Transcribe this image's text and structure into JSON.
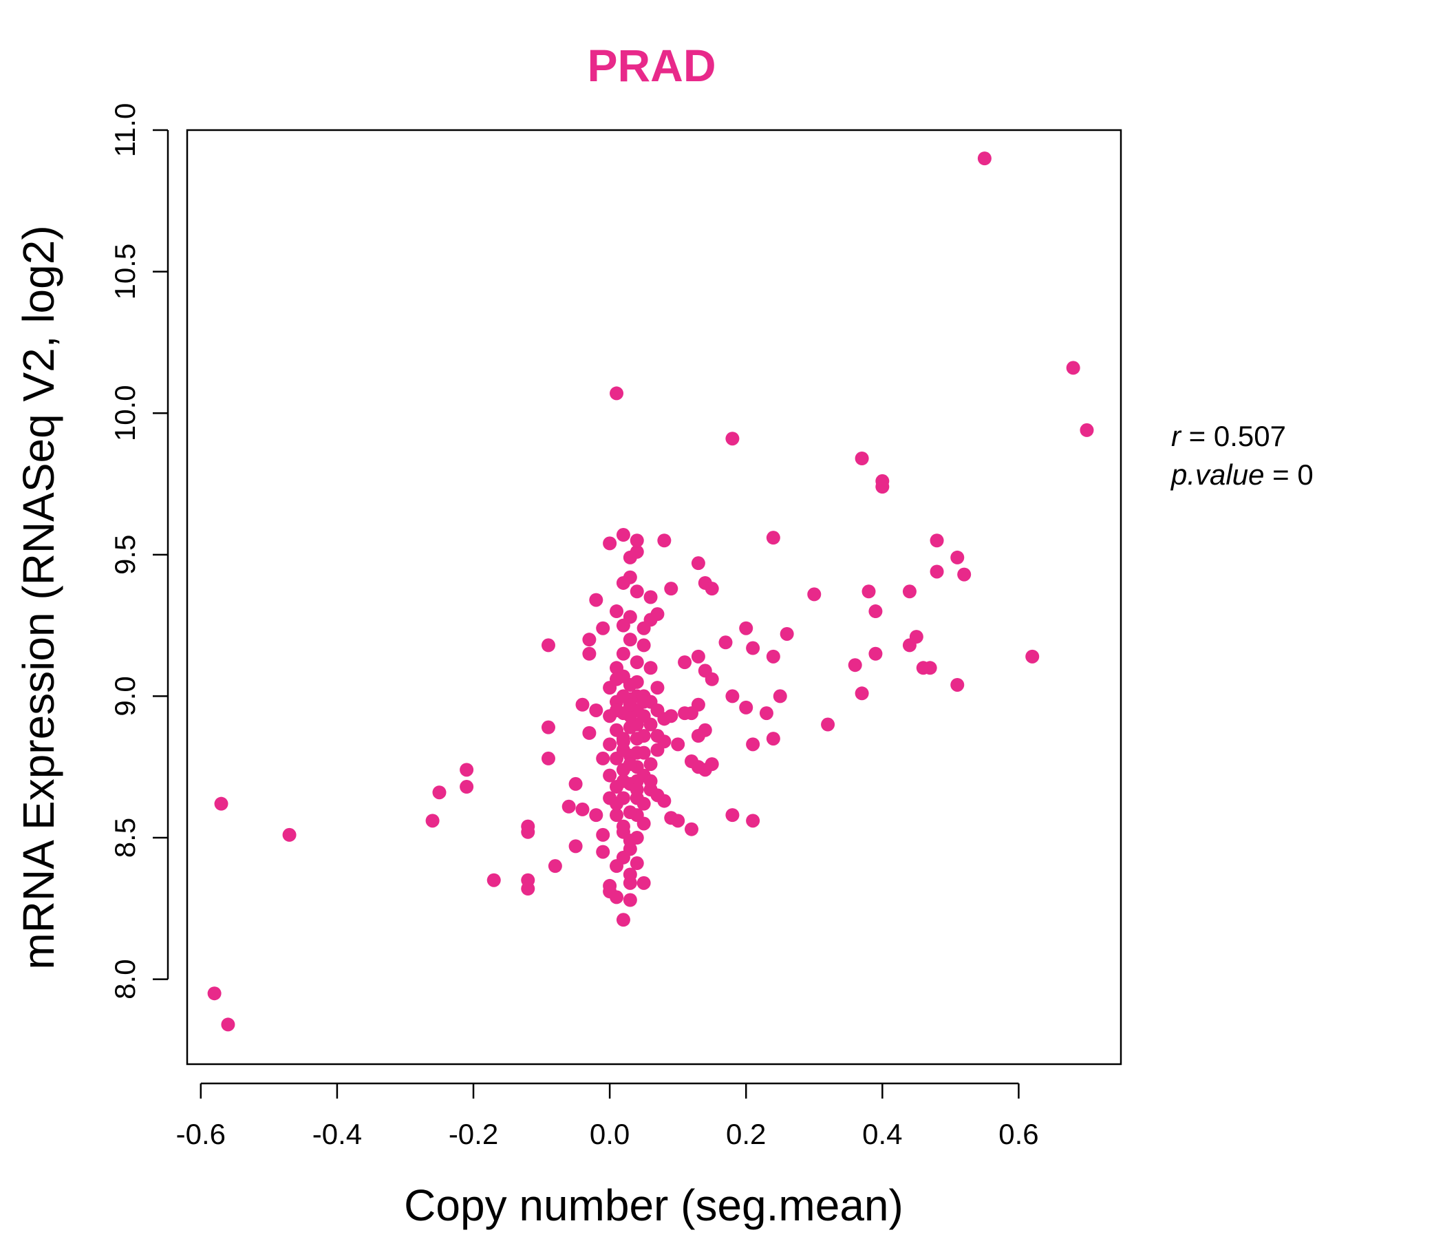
{
  "chart_data": {
    "type": "scatter",
    "title": "PRAD",
    "xlabel": "Copy number (seg.mean)",
    "ylabel": "mRNA Expression (RNASeq V2, log2)",
    "xlim": [
      -0.62,
      0.75
    ],
    "ylim": [
      7.7,
      11.0
    ],
    "x_ticks": [
      -0.6,
      -0.4,
      -0.2,
      0.0,
      0.2,
      0.4,
      0.6
    ],
    "x_tick_labels": [
      "-0.6",
      "-0.4",
      "-0.2",
      "0.0",
      "0.2",
      "0.4",
      "0.6"
    ],
    "y_ticks": [
      8.0,
      8.5,
      9.0,
      9.5,
      10.0,
      10.5,
      11.0
    ],
    "y_tick_labels": [
      "8.0",
      "8.5",
      "9.0",
      "9.5",
      "10.0",
      "10.5",
      "11.0"
    ],
    "grid": false,
    "color": "#E8298A",
    "stats": {
      "r_label": "r",
      "r_value": "0.507",
      "p_label": "p.value",
      "p_value": "0"
    },
    "points": [
      [
        0.55,
        10.9
      ],
      [
        0.68,
        10.16
      ],
      [
        0.7,
        9.94
      ],
      [
        0.01,
        10.07
      ],
      [
        0.18,
        9.91
      ],
      [
        0.37,
        9.84
      ],
      [
        0.4,
        9.76
      ],
      [
        0.4,
        9.74
      ],
      [
        0.24,
        9.56
      ],
      [
        0.48,
        9.55
      ],
      [
        0.51,
        9.49
      ],
      [
        0.52,
        9.43
      ],
      [
        0.48,
        9.44
      ],
      [
        0.38,
        9.37
      ],
      [
        0.44,
        9.37
      ],
      [
        0.3,
        9.36
      ],
      [
        0.39,
        9.3
      ],
      [
        0.26,
        9.22
      ],
      [
        0.45,
        9.21
      ],
      [
        0.44,
        9.18
      ],
      [
        0.39,
        9.15
      ],
      [
        0.62,
        9.14
      ],
      [
        0.36,
        9.11
      ],
      [
        0.46,
        9.1
      ],
      [
        0.47,
        9.1
      ],
      [
        0.51,
        9.04
      ],
      [
        0.37,
        9.01
      ],
      [
        0.32,
        8.9
      ],
      [
        0.2,
        9.24
      ],
      [
        0.21,
        9.17
      ],
      [
        0.17,
        9.19
      ],
      [
        0.24,
        9.14
      ],
      [
        0.18,
        9.0
      ],
      [
        0.2,
        8.96
      ],
      [
        0.23,
        8.94
      ],
      [
        0.25,
        9.0
      ],
      [
        0.21,
        8.83
      ],
      [
        0.24,
        8.85
      ],
      [
        0.18,
        8.58
      ],
      [
        0.21,
        8.56
      ],
      [
        0.13,
        9.47
      ],
      [
        0.14,
        9.4
      ],
      [
        0.15,
        9.38
      ],
      [
        0.13,
        9.14
      ],
      [
        0.14,
        9.09
      ],
      [
        0.15,
        9.06
      ],
      [
        0.11,
        9.12
      ],
      [
        0.13,
        8.97
      ],
      [
        0.12,
        8.94
      ],
      [
        0.14,
        8.88
      ],
      [
        0.13,
        8.86
      ],
      [
        0.14,
        8.74
      ],
      [
        0.15,
        8.76
      ],
      [
        0.12,
        8.77
      ],
      [
        0.13,
        8.75
      ],
      [
        0.1,
        8.56
      ],
      [
        0.09,
        8.57
      ],
      [
        0.12,
        8.53
      ],
      [
        0.08,
        8.63
      ],
      [
        0.08,
        8.84
      ],
      [
        0.09,
        8.93
      ],
      [
        0.1,
        8.83
      ],
      [
        0.11,
        8.94
      ],
      [
        0.08,
        9.55
      ],
      [
        0.09,
        9.38
      ],
      [
        0.07,
        9.29
      ],
      [
        0.06,
        9.27
      ],
      [
        0.06,
        9.35
      ],
      [
        -0.57,
        8.62
      ],
      [
        -0.58,
        7.95
      ],
      [
        -0.56,
        7.84
      ],
      [
        -0.47,
        8.51
      ],
      [
        -0.26,
        8.56
      ],
      [
        -0.25,
        8.66
      ],
      [
        -0.21,
        8.74
      ],
      [
        -0.21,
        8.68
      ],
      [
        -0.17,
        8.35
      ],
      [
        -0.12,
        8.54
      ],
      [
        -0.12,
        8.52
      ],
      [
        -0.12,
        8.35
      ],
      [
        -0.12,
        8.32
      ],
      [
        -0.09,
        9.18
      ],
      [
        -0.09,
        8.89
      ],
      [
        -0.09,
        8.78
      ],
      [
        -0.08,
        8.4
      ],
      [
        -0.06,
        8.61
      ],
      [
        -0.05,
        8.47
      ],
      [
        -0.05,
        8.69
      ],
      [
        -0.04,
        8.6
      ],
      [
        -0.04,
        8.97
      ],
      [
        -0.03,
        8.87
      ],
      [
        -0.03,
        9.2
      ],
      [
        -0.02,
        9.34
      ],
      [
        -0.03,
        9.15
      ],
      [
        -0.02,
        8.95
      ],
      [
        -0.01,
        8.78
      ],
      [
        -0.01,
        9.24
      ],
      [
        0.0,
        9.54
      ],
      [
        -0.02,
        8.58
      ],
      [
        -0.01,
        8.51
      ],
      [
        -0.01,
        8.45
      ],
      [
        0.0,
        8.33
      ],
      [
        0.0,
        8.31
      ],
      [
        0.01,
        8.29
      ],
      [
        0.02,
        8.21
      ],
      [
        0.03,
        8.28
      ],
      [
        0.03,
        8.34
      ],
      [
        0.05,
        8.34
      ],
      [
        0.02,
        9.57
      ],
      [
        0.03,
        9.49
      ],
      [
        0.04,
        9.51
      ],
      [
        0.04,
        9.55
      ],
      [
        0.03,
        9.42
      ],
      [
        0.04,
        9.37
      ],
      [
        0.02,
        9.4
      ],
      [
        0.01,
        9.3
      ],
      [
        0.03,
        9.28
      ],
      [
        0.05,
        9.24
      ],
      [
        0.05,
        9.18
      ],
      [
        0.04,
        9.12
      ],
      [
        0.06,
        9.1
      ],
      [
        0.07,
        9.03
      ],
      [
        0.06,
        8.98
      ],
      [
        0.07,
        8.95
      ],
      [
        0.06,
        8.9
      ],
      [
        0.05,
        8.86
      ],
      [
        0.07,
        8.81
      ],
      [
        0.06,
        8.76
      ],
      [
        0.05,
        8.72
      ],
      [
        0.06,
        8.67
      ],
      [
        0.05,
        8.62
      ],
      [
        0.04,
        8.58
      ],
      [
        0.05,
        8.55
      ],
      [
        0.04,
        8.5
      ],
      [
        0.03,
        8.46
      ],
      [
        0.04,
        8.41
      ],
      [
        0.03,
        8.37
      ],
      [
        0.02,
        8.43
      ],
      [
        0.01,
        8.4
      ],
      [
        0.02,
        8.52
      ],
      [
        0.01,
        8.58
      ],
      [
        0.0,
        8.64
      ],
      [
        0.01,
        8.68
      ],
      [
        0.0,
        8.72
      ],
      [
        0.01,
        8.78
      ],
      [
        0.0,
        8.83
      ],
      [
        0.01,
        8.88
      ],
      [
        0.0,
        8.93
      ],
      [
        0.01,
        8.98
      ],
      [
        0.0,
        9.03
      ],
      [
        0.02,
        9.07
      ],
      [
        0.01,
        9.1
      ],
      [
        0.02,
        9.15
      ],
      [
        0.03,
        9.2
      ],
      [
        0.02,
        9.25
      ],
      [
        0.03,
        9.04
      ],
      [
        0.03,
        8.99
      ],
      [
        0.02,
        8.94
      ],
      [
        0.03,
        8.89
      ],
      [
        0.02,
        8.84
      ],
      [
        0.03,
        8.79
      ],
      [
        0.02,
        8.74
      ],
      [
        0.03,
        8.69
      ],
      [
        0.02,
        8.64
      ],
      [
        0.03,
        8.59
      ],
      [
        0.02,
        8.54
      ],
      [
        0.03,
        8.49
      ],
      [
        0.04,
        8.64
      ],
      [
        0.04,
        8.7
      ],
      [
        0.04,
        8.75
      ],
      [
        0.04,
        8.8
      ],
      [
        0.04,
        8.85
      ],
      [
        0.04,
        8.9
      ],
      [
        0.04,
        8.95
      ],
      [
        0.04,
        9.0
      ],
      [
        0.04,
        9.05
      ],
      [
        0.05,
        9.0
      ],
      [
        0.05,
        8.93
      ],
      [
        0.05,
        8.8
      ],
      [
        0.06,
        8.7
      ],
      [
        0.07,
        8.86
      ],
      [
        0.08,
        8.92
      ],
      [
        0.07,
        8.65
      ],
      [
        0.02,
        9.0
      ],
      [
        0.01,
        8.95
      ],
      [
        0.03,
        8.93
      ],
      [
        0.02,
        8.7
      ],
      [
        0.01,
        8.62
      ],
      [
        0.03,
        8.76
      ],
      [
        0.02,
        8.85
      ],
      [
        0.03,
        8.97
      ],
      [
        0.01,
        9.06
      ],
      [
        0.02,
        8.81
      ],
      [
        0.04,
        8.67
      ],
      [
        0.05,
        8.98
      ]
    ]
  }
}
